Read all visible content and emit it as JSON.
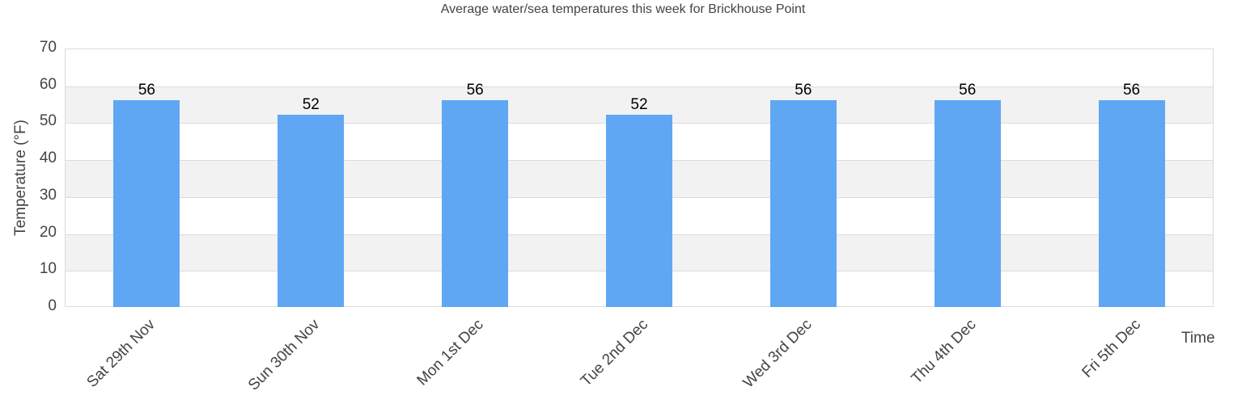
{
  "chart_data": {
    "type": "bar",
    "title": "Average water/sea temperatures this week for Brickhouse Point",
    "xlabel": "Time",
    "ylabel": "Temperature (°F)",
    "ylim": [
      0,
      70
    ],
    "yticks": [
      "0",
      "10",
      "20",
      "30",
      "40",
      "50",
      "60",
      "70"
    ],
    "grid": true,
    "legend": null,
    "categories": [
      "Sat 29th Nov",
      "Sun 30th Nov",
      "Mon 1st Dec",
      "Tue 2nd Dec",
      "Wed 3rd Dec",
      "Thu 4th Dec",
      "Fri 5th Dec"
    ],
    "values": [
      56,
      52,
      56,
      52,
      56,
      56,
      56
    ],
    "value_labels": [
      "56",
      "52",
      "56",
      "52",
      "56",
      "56",
      "56"
    ],
    "bar_color": "#60a7f3"
  }
}
